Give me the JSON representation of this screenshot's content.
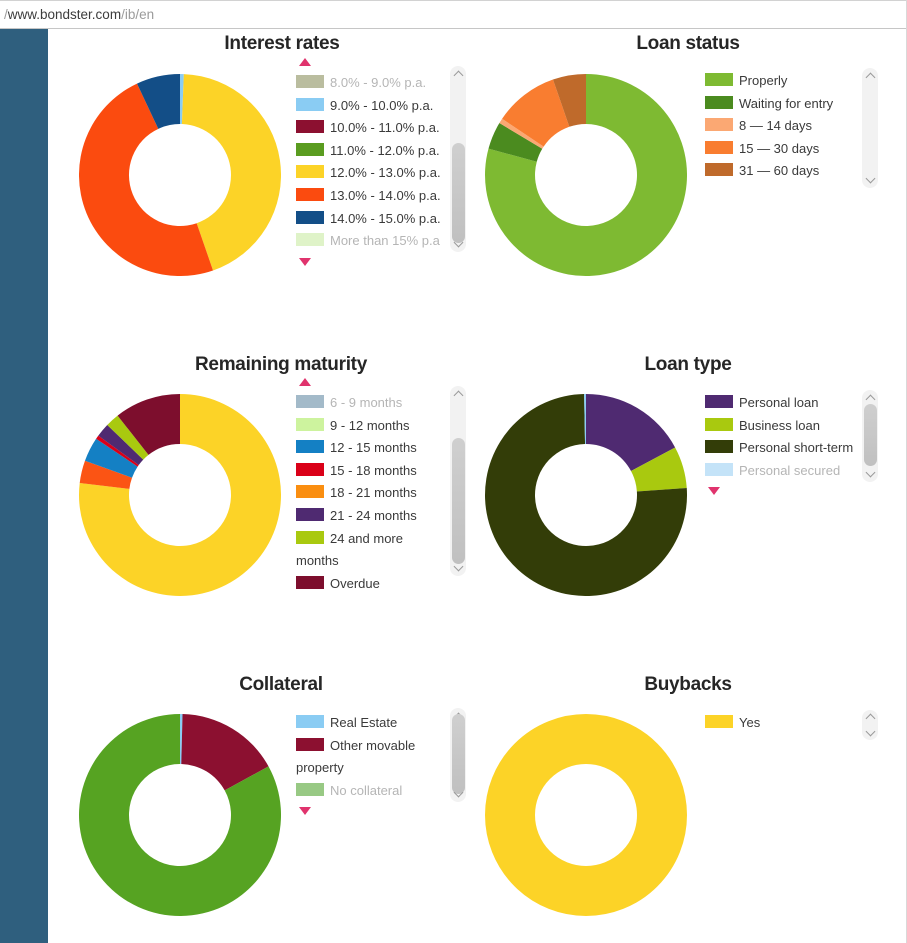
{
  "browser": {
    "url_prefix": "/",
    "url_domain": "www.bondster.com",
    "url_path": "/ib/en"
  },
  "sidebar": {
    "color": "#2f5f7e"
  },
  "accent_colors": {
    "legend_scroll_arrow": "#e0336d",
    "muted_text": "#b5b5b5"
  },
  "chart_data": [
    {
      "type": "pie",
      "subtype": "donut",
      "title": "Interest rates",
      "legend_position": "right",
      "legend_up_arrow": true,
      "legend_down_arrow": true,
      "legend": [
        {
          "label": "8.0% - 9.0% p.a.",
          "color": "#babd9f",
          "muted": true
        },
        {
          "label": "9.0% - 10.0% p.a.",
          "color": "#8accf3",
          "muted": false
        },
        {
          "label": "10.0% - 11.0% p.a.",
          "color": "#8c1030",
          "muted": false
        },
        {
          "label": "11.0% - 12.0% p.a.",
          "color": "#5a9c20",
          "muted": false
        },
        {
          "label": "12.0% - 13.0% p.a.",
          "color": "#fcd327",
          "muted": false
        },
        {
          "label": "13.0% - 14.0% p.a.",
          "color": "#fb4b0f",
          "muted": false
        },
        {
          "label": "14.0% - 15.0% p.a.",
          "color": "#134e87",
          "muted": false
        },
        {
          "label": "More than 15% p.a",
          "color": "#dff3c8",
          "muted": true
        }
      ],
      "slices": [
        {
          "label": "9.0% - 10.0% p.a.",
          "color": "#8accf3",
          "pct": 0.6
        },
        {
          "label": "12.0% - 13.0% p.a.",
          "color": "#fcd327",
          "pct": 44.1
        },
        {
          "label": "13.0% - 14.0% p.a.",
          "color": "#fb4b0f",
          "pct": 48.3
        },
        {
          "label": "14.0% - 15.0% p.a.",
          "color": "#134e87",
          "pct": 7.0
        }
      ]
    },
    {
      "type": "pie",
      "subtype": "donut",
      "title": "Loan status",
      "legend_position": "right",
      "legend_up_arrow": false,
      "legend_down_arrow": false,
      "legend": [
        {
          "label": "Properly",
          "color": "#7eba32",
          "muted": false
        },
        {
          "label": "Waiting for entry",
          "color": "#4b8b1f",
          "muted": false
        },
        {
          "label": "8 — 14 days",
          "color": "#fba873",
          "muted": false
        },
        {
          "label": "15 — 30 days",
          "color": "#f97d30",
          "muted": false
        },
        {
          "label": "31 — 60 days",
          "color": "#bf6a2b",
          "muted": false
        }
      ],
      "slices": [
        {
          "label": "Properly",
          "color": "#7eba32",
          "pct": 79.2
        },
        {
          "label": "Waiting for entry",
          "color": "#4b8b1f",
          "pct": 4.4
        },
        {
          "label": "8 — 14 days",
          "color": "#fba873",
          "pct": 0.8
        },
        {
          "label": "15 — 30 days",
          "color": "#f97d30",
          "pct": 10.3
        },
        {
          "label": "31 — 60 days",
          "color": "#bf6a2b",
          "pct": 5.3
        }
      ]
    },
    {
      "type": "pie",
      "subtype": "donut",
      "title": "Remaining maturity",
      "legend_position": "right",
      "legend_up_arrow": true,
      "legend_down_arrow": false,
      "legend": [
        {
          "label": "6 - 9 months",
          "color": "#a3bac9",
          "muted": true
        },
        {
          "label": "9 - 12 months",
          "color": "#cdf39e",
          "muted": false
        },
        {
          "label": "12 - 15 months",
          "color": "#1480c4",
          "muted": false
        },
        {
          "label": "15 - 18 months",
          "color": "#da0018",
          "muted": false
        },
        {
          "label": "18 - 21 months",
          "color": "#fa8e10",
          "muted": false
        },
        {
          "label": "21 - 24 months",
          "color": "#4f2a71",
          "muted": false
        },
        {
          "label": "24 and more months",
          "color": "#a9c90f",
          "muted": false
        },
        {
          "label": "Overdue",
          "color": "#7d0e2d",
          "muted": false
        }
      ],
      "slices": [
        {
          "label": "",
          "color": "#fcd327",
          "pct": 76.9
        },
        {
          "label": "18 - 21 months",
          "color": "#fb5414",
          "pct": 3.6
        },
        {
          "label": "12 - 15 months",
          "color": "#1480c4",
          "pct": 3.9
        },
        {
          "label": "15 - 18 months",
          "color": "#da0018",
          "pct": 0.6
        },
        {
          "label": "21 - 24 months",
          "color": "#4f2a71",
          "pct": 2.2
        },
        {
          "label": "24 and more months",
          "color": "#a9c90f",
          "pct": 2.2
        },
        {
          "label": "Overdue",
          "color": "#7d0e2d",
          "pct": 10.6
        }
      ]
    },
    {
      "type": "pie",
      "subtype": "donut",
      "title": "Loan type",
      "legend_position": "right",
      "legend_up_arrow": false,
      "legend_down_arrow": true,
      "legend": [
        {
          "label": "Personal loan",
          "color": "#4f2a71",
          "muted": false
        },
        {
          "label": "Business loan",
          "color": "#a9c90f",
          "muted": false
        },
        {
          "label": "Personal short-term",
          "color": "#333d08",
          "muted": false
        },
        {
          "label": "Personal secured",
          "color": "#c4e3f8",
          "muted": true
        }
      ],
      "slices": [
        {
          "label": "Personal loan",
          "color": "#4f2a71",
          "pct": 17.2
        },
        {
          "label": "Business loan",
          "color": "#a9c90f",
          "pct": 6.7
        },
        {
          "label": "Personal short-term",
          "color": "#333d08",
          "pct": 75.8
        },
        {
          "label": "Personal secured",
          "color": "#8accf3",
          "pct": 0.3
        }
      ]
    },
    {
      "type": "pie",
      "subtype": "donut",
      "title": "Collateral",
      "legend_position": "right",
      "legend_up_arrow": false,
      "legend_down_arrow": true,
      "legend": [
        {
          "label": "Real Estate",
          "color": "#8accf3",
          "muted": false
        },
        {
          "label": "Other movable property",
          "color": "#8c1030",
          "muted": false
        },
        {
          "label": "No collateral",
          "color": "#98c984",
          "muted": true
        }
      ],
      "slices": [
        {
          "label": "Real Estate",
          "color": "#8accf3",
          "pct": 0.4
        },
        {
          "label": "Other movable property",
          "color": "#8c1030",
          "pct": 16.6
        },
        {
          "label": "No collateral",
          "color": "#56a322",
          "pct": 83.0
        }
      ]
    },
    {
      "type": "pie",
      "subtype": "donut",
      "title": "Buybacks",
      "legend_position": "right",
      "legend_up_arrow": false,
      "legend_down_arrow": false,
      "legend": [
        {
          "label": "Yes",
          "color": "#fcd327",
          "muted": false
        }
      ],
      "slices": [
        {
          "label": "Yes",
          "color": "#fcd327",
          "pct": 100
        }
      ]
    }
  ]
}
